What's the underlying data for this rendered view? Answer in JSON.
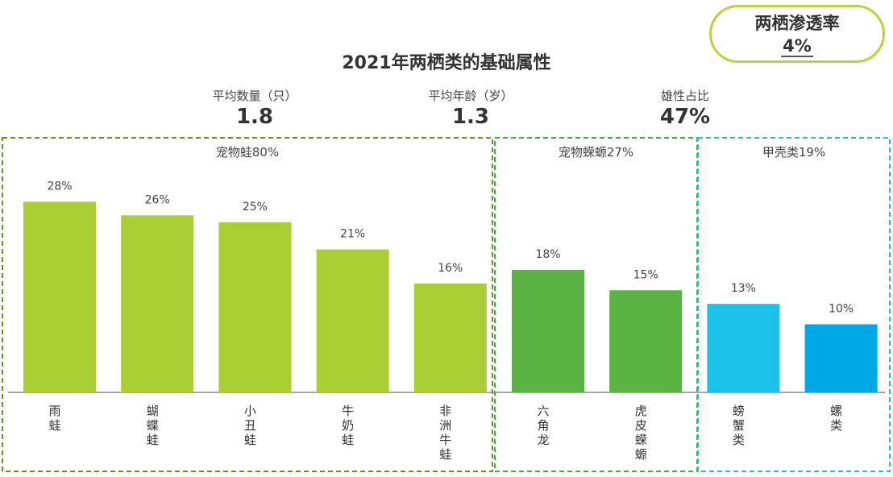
{
  "badge": {
    "title": "两栖渗透率",
    "value": "4%"
  },
  "stats": [
    {
      "label": "平均数量（只）",
      "value": "1.8"
    },
    {
      "label": "平均年龄（岁）",
      "value": "1.3"
    },
    {
      "label": "雄性占比",
      "value": "47%"
    }
  ],
  "colors": {
    "frog": "#a9cf34",
    "salamander": "#5bb344",
    "crustacean_light": "#1cc2ea",
    "crustacean_dark": "#00a8e8",
    "frog_border": "#6f8e1f",
    "salamander_border": "#3fae49",
    "crustacean_border": "#2bbbd8",
    "badge_border": "#b8d43a"
  },
  "chart_data": {
    "type": "bar",
    "title": "2021年两栖类的基础属性",
    "ylim": [
      0,
      30
    ],
    "grid": false,
    "groups": [
      {
        "label": "宠物蛙80%",
        "color_key": "frog_border",
        "start": 0,
        "end": 4
      },
      {
        "label": "宠物蝾螈27%",
        "color_key": "salamander_border",
        "start": 5,
        "end": 6
      },
      {
        "label": "甲壳类19%",
        "color_key": "crustacean_border",
        "start": 7,
        "end": 8
      }
    ],
    "categories": [
      "雨蛙",
      "蝴蝶蛙",
      "小丑蛙",
      "牛奶蛙",
      "非洲牛蛙",
      "六角龙",
      "虎皮蝾螈",
      "螃蟹类",
      "螺类"
    ],
    "values": [
      28,
      26,
      25,
      21,
      16,
      18,
      15,
      13,
      10
    ],
    "value_labels": [
      "28%",
      "26%",
      "25%",
      "21%",
      "16%",
      "18%",
      "15%",
      "13%",
      "10%"
    ],
    "bar_color_keys": [
      "frog",
      "frog",
      "frog",
      "frog",
      "frog",
      "salamander",
      "salamander",
      "crustacean_light",
      "crustacean_dark"
    ]
  }
}
